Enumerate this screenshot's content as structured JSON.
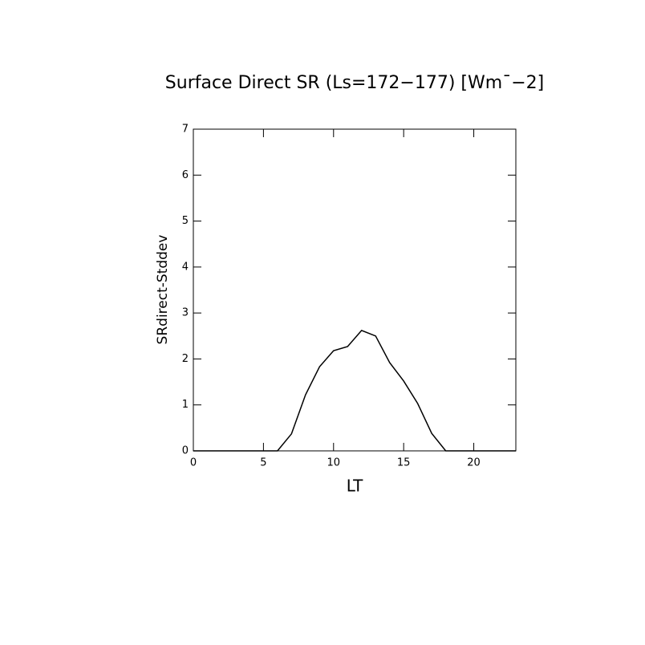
{
  "chart_data": {
    "type": "line",
    "title": "Surface Direct SR (Ls=172−177) [Wm¯−2]",
    "xlabel": "LT",
    "ylabel": "SRdirect-Stddev",
    "x": [
      0,
      1,
      2,
      3,
      4,
      5,
      6,
      7,
      8,
      9,
      10,
      11,
      12,
      13,
      14,
      15,
      16,
      17,
      18,
      19,
      20,
      21,
      22,
      23
    ],
    "series": [
      {
        "color": "#000000",
        "values": [
          0,
          0,
          0,
          0,
          0,
          0,
          0,
          0.37,
          1.22,
          1.83,
          2.18,
          2.27,
          2.62,
          2.5,
          1.92,
          1.52,
          1.03,
          0.38,
          0,
          0,
          0,
          0,
          0,
          0
        ]
      }
    ],
    "xlim": [
      0,
      23
    ],
    "xticks": [
      0,
      5,
      10,
      15,
      20
    ],
    "ylim": [
      0,
      7
    ],
    "yticks": [
      0,
      1,
      2,
      3,
      4,
      5,
      6,
      7
    ]
  }
}
